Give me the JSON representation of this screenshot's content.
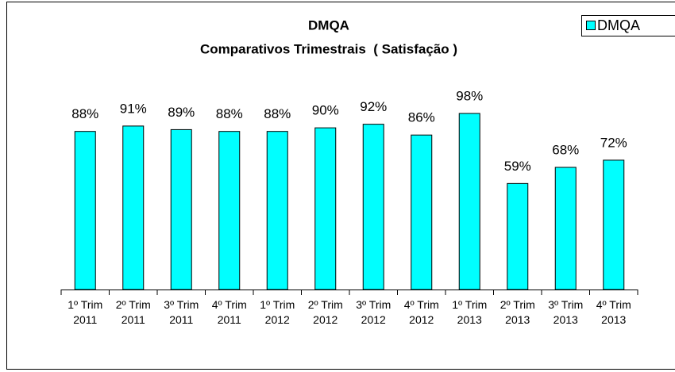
{
  "chart_data": {
    "type": "bar",
    "title": "DMQA",
    "subtitle": "Comparativos Trimestrais  ( Satisfação )",
    "categories": [
      "1º Trim 2011",
      "2º Trim 2011",
      "3º Trim 2011",
      "4º Trim 2011",
      "1º Trim 2012",
      "2º Trim 2012",
      "3º Trim 2012",
      "4º Trim 2012",
      "1º Trim 2013",
      "2º Trim 2013",
      "3º Trim 2013",
      "4º Trim 2013"
    ],
    "series": [
      {
        "name": "DMQA",
        "color": "#00ffff",
        "values": [
          88,
          91,
          89,
          88,
          88,
          90,
          92,
          86,
          98,
          59,
          68,
          72
        ],
        "value_labels": [
          "88%",
          "91%",
          "89%",
          "88%",
          "88%",
          "90%",
          "92%",
          "86%",
          "98%",
          "59%",
          "68%",
          "72%"
        ]
      }
    ],
    "ylim": [
      0,
      100
    ],
    "legend": "top-right"
  }
}
